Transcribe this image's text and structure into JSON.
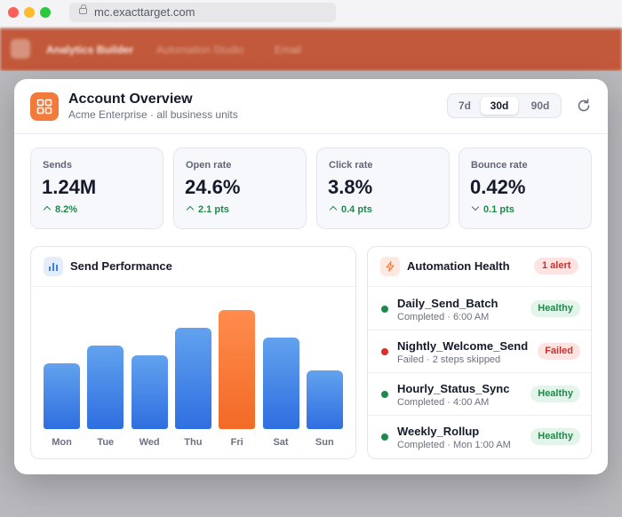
{
  "browser": {
    "url": "mc.exacttarget.com"
  },
  "appbar": {
    "nav": [
      "Analytics Builder",
      "Automation Studio",
      "Email"
    ]
  },
  "modal": {
    "title": "Account Overview",
    "subtitle": "Acme Enterprise · all business units",
    "range_options": [
      "7d",
      "30d",
      "90d"
    ],
    "range_selected": "30d",
    "refresh_icon": "refresh-icon",
    "header_icon": "dashboard-icon"
  },
  "stats": [
    {
      "label": "Sends",
      "value": "1.24M",
      "delta": "8.2%",
      "direction": "up"
    },
    {
      "label": "Open rate",
      "value": "24.6%",
      "delta": "2.1 pts",
      "direction": "up"
    },
    {
      "label": "Click rate",
      "value": "3.8%",
      "delta": "0.4 pts",
      "direction": "up"
    },
    {
      "label": "Bounce rate",
      "value": "0.42%",
      "delta": "0.1 pts",
      "direction": "down"
    }
  ],
  "performance": {
    "title": "Send Performance",
    "icon": "bar-chart-icon",
    "chart_data": {
      "type": "bar",
      "categories": [
        "Mon",
        "Tue",
        "Wed",
        "Thu",
        "Fri",
        "Sat",
        "Sun"
      ],
      "values": [
        74,
        94,
        83,
        114,
        134,
        103,
        66
      ],
      "highlight": "Fri",
      "colors": {
        "bar": "#3d7fe6",
        "highlight": "#f47431"
      }
    }
  },
  "automation": {
    "title": "Automation Health",
    "icon": "lightning-icon",
    "alert_badge": "1 alert",
    "rows": [
      {
        "name": "Daily_Send_Batch",
        "meta": "Completed · 6:00 AM",
        "status": "Healthy",
        "ok": true
      },
      {
        "name": "Nightly_Welcome_Send",
        "meta": "Failed · 2 steps skipped",
        "status": "Failed",
        "ok": false
      },
      {
        "name": "Hourly_Status_Sync",
        "meta": "Completed · 4:00 AM",
        "status": "Healthy",
        "ok": true
      },
      {
        "name": "Weekly_Rollup",
        "meta": "Completed · Mon 1:00 AM",
        "status": "Healthy",
        "ok": true
      }
    ]
  }
}
